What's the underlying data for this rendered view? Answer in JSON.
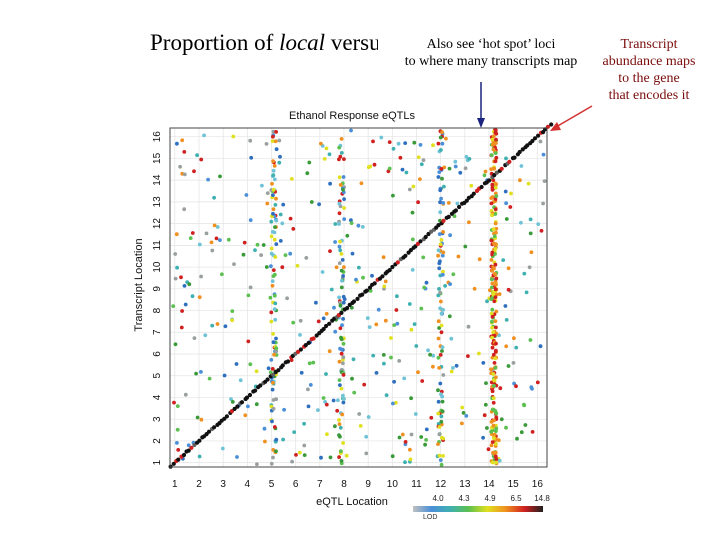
{
  "slide": {
    "title_prefix": "Proportion of ",
    "title_italic": "local",
    "title_suffix": " versus distant eQTLs",
    "note_hotspot": [
      "Also see ‘hot spot’ loci",
      "to where many transcripts map"
    ],
    "note_local": [
      "Transcript",
      "abundance maps",
      "to the gene",
      "that encodes it"
    ],
    "arrow_hotspot_color": "#1a237e",
    "arrow_local_color": "#d32f2f"
  },
  "chart_data": {
    "type": "scatter",
    "title": "Ethanol Response eQTLs",
    "xlabel": "eQTL Location",
    "ylabel": "Transcript Location",
    "x_ticks": [
      "1",
      "2",
      "3",
      "4",
      "5",
      "6",
      "7",
      "8",
      "9",
      "10",
      "11",
      "12",
      "13",
      "14",
      "15",
      "16"
    ],
    "y_ticks": [
      "1",
      "2",
      "3",
      "4",
      "5",
      "6",
      "7",
      "8",
      "9",
      "10",
      "11",
      "12",
      "13",
      "14",
      "15",
      "16"
    ],
    "grid": true,
    "colorbar": {
      "label": "LOD",
      "ticks": [
        "4.0",
        "4.3",
        "4.9",
        "6.5",
        "14.8"
      ],
      "colors": [
        "#c0c0c0",
        "#4a8fd8",
        "#3fb0b0",
        "#5cc050",
        "#e0e020",
        "#f09020",
        "#d02020",
        "#202020"
      ]
    },
    "hotspots_x": [
      5.1,
      7.9,
      12.0,
      14.2
    ],
    "diagonal": "local eQTLs: transcript location equals eQTL location"
  }
}
